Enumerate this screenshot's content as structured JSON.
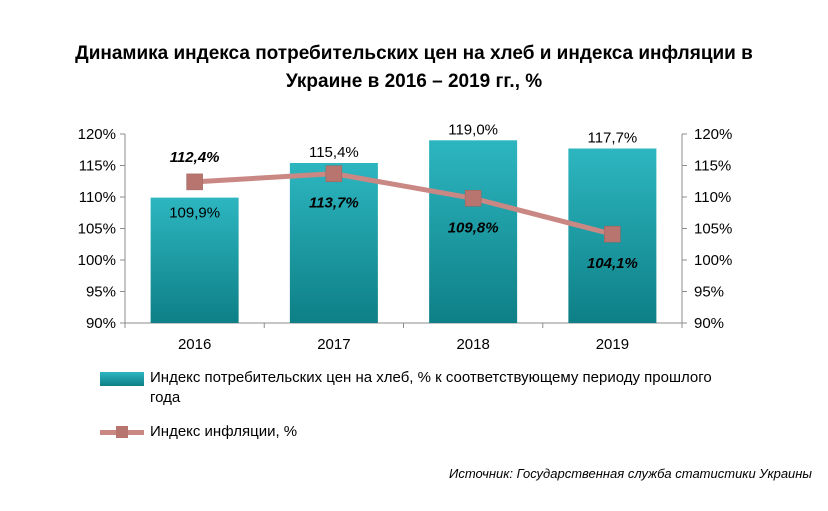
{
  "title_lines": [
    "Динамика индекса потребительских цен на хлеб и индекса инфляции в",
    "Украине в 2016 – 2019 гг., %"
  ],
  "source": "Источник: Государственная служба статистики Украины",
  "colors": {
    "bar_top": "#2db6c0",
    "bar_bottom": "#0e7f86",
    "line": "#c98883",
    "marker": "#b87570"
  },
  "chart_data": {
    "type": "bar",
    "title": "Динамика индекса потребительских цен на хлеб и индекса инфляции в Украине в 2016 – 2019 гг., %",
    "categories": [
      "2016",
      "2017",
      "2018",
      "2019"
    ],
    "ylim": [
      90,
      120
    ],
    "yticks": [
      "90%",
      "95%",
      "100%",
      "105%",
      "110%",
      "115%",
      "120%"
    ],
    "ytick_values": [
      90,
      95,
      100,
      105,
      110,
      115,
      120
    ],
    "legend_position": "bottom",
    "grid": false,
    "series": [
      {
        "name": "Индекс  потребительских  цен на хлеб, % к соответствующему  периоду прошлого года",
        "type": "bar",
        "values": [
          109.9,
          115.4,
          119.0,
          117.7
        ],
        "labels": [
          "109,9%",
          "115,4%",
          "119,0%",
          "117,7%"
        ]
      },
      {
        "name": "Индекс  инфляции,  %",
        "type": "line",
        "values": [
          112.4,
          113.7,
          109.8,
          104.1
        ],
        "labels": [
          "112,4%",
          "113,7%",
          "109,8%",
          "104,1%"
        ]
      }
    ]
  }
}
